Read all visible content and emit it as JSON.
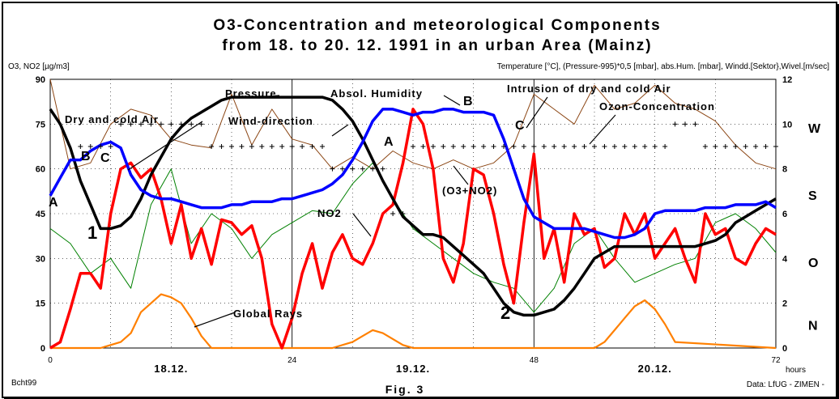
{
  "chart_data": {
    "type": "line",
    "title_line1": "O3-Concentration and meteorological Components",
    "title_line2": "from 18. to 20. 12. 1991 in an urban Area (Mainz)",
    "left_axis_label": "O3, NO2 [µg/m3]",
    "right_axis_label": "Temperature [°C], (Pressure-995)*0,5 [mbar], abs.Hum. [mbar], Windd.[Sektor},Wivel.[m/sec]",
    "x_unit": "hours",
    "xlim": [
      0,
      72
    ],
    "x_ticks": [
      "0",
      "24",
      "48",
      "72"
    ],
    "day_labels": [
      {
        "x": 12,
        "label": "18.12."
      },
      {
        "x": 36,
        "label": "19.12."
      },
      {
        "x": 60,
        "label": "20.12."
      }
    ],
    "ylim_left": [
      0,
      90
    ],
    "y_ticks_left": [
      "0",
      "15",
      "30",
      "45",
      "60",
      "75",
      "90"
    ],
    "ylim_right": [
      0,
      12
    ],
    "y_ticks_right": [
      "0",
      "2",
      "4",
      "6",
      "8",
      "10",
      "12"
    ],
    "wind_sector_labels": [
      "N",
      "O",
      "S",
      "W"
    ],
    "series": [
      {
        "key": "ozone",
        "color": "#ff0000",
        "x": [
          0,
          1,
          2,
          3,
          4,
          5,
          6,
          7,
          8,
          9,
          10,
          11,
          12,
          13,
          14,
          15,
          16,
          17,
          18,
          19,
          20,
          21,
          22,
          23,
          24,
          25,
          26,
          27,
          28,
          29,
          30,
          31,
          32,
          33,
          34,
          35,
          36,
          37,
          38,
          39,
          40,
          41,
          42,
          43,
          44,
          45,
          46,
          47,
          48,
          49,
          50,
          51,
          52,
          53,
          54,
          55,
          56,
          57,
          58,
          59,
          60,
          61,
          62,
          63,
          64,
          65,
          66,
          67,
          68,
          69,
          70,
          71,
          72
        ],
        "y": [
          0,
          2,
          13,
          25,
          25,
          20,
          45,
          60,
          62,
          57,
          60,
          50,
          35,
          48,
          30,
          40,
          28,
          43,
          42,
          38,
          41,
          30,
          8,
          0,
          10,
          25,
          35,
          20,
          32,
          38,
          30,
          28,
          35,
          45,
          48,
          62,
          80,
          75,
          60,
          30,
          22,
          35,
          60,
          58,
          45,
          28,
          15,
          42,
          65,
          30,
          40,
          22,
          45,
          38,
          40,
          27,
          30,
          45,
          38,
          45,
          30,
          35,
          40,
          30,
          22,
          45,
          38,
          40,
          30,
          28,
          35,
          40,
          38
        ]
      },
      {
        "key": "humidity",
        "color": "#0000ff",
        "x": [
          0,
          1,
          2,
          3,
          4,
          5,
          6,
          7,
          8,
          9,
          10,
          11,
          12,
          13,
          14,
          15,
          16,
          17,
          18,
          19,
          20,
          21,
          22,
          23,
          24,
          25,
          26,
          27,
          28,
          29,
          30,
          31,
          32,
          33,
          34,
          35,
          36,
          37,
          38,
          39,
          40,
          41,
          42,
          43,
          44,
          45,
          46,
          47,
          48,
          49,
          50,
          51,
          52,
          53,
          54,
          55,
          56,
          57,
          58,
          59,
          60,
          61,
          62,
          63,
          64,
          65,
          66,
          67,
          68,
          69,
          70,
          71,
          72
        ],
        "y": [
          51,
          57,
          63,
          63,
          66,
          68,
          69,
          67,
          58,
          53,
          51,
          50,
          50,
          49,
          48,
          47,
          47,
          47,
          48,
          48,
          49,
          49,
          49,
          50,
          50,
          51,
          52,
          53,
          55,
          58,
          63,
          69,
          76,
          80,
          80,
          79,
          78,
          79,
          79,
          80,
          80,
          79,
          79,
          79,
          78,
          70,
          60,
          50,
          44,
          42,
          40,
          40,
          40,
          40,
          39,
          38,
          37,
          37,
          38,
          40,
          45,
          46,
          46,
          46,
          46,
          47,
          47,
          47,
          48,
          48,
          48,
          49,
          47
        ]
      },
      {
        "key": "pressure",
        "color": "#000000",
        "x": [
          0,
          1,
          2,
          3,
          4,
          5,
          6,
          7,
          8,
          9,
          10,
          11,
          12,
          13,
          14,
          15,
          16,
          17,
          18,
          19,
          20,
          21,
          22,
          23,
          24,
          25,
          26,
          27,
          28,
          29,
          30,
          31,
          32,
          33,
          34,
          35,
          36,
          37,
          38,
          39,
          40,
          41,
          42,
          43,
          44,
          45,
          46,
          47,
          48,
          49,
          50,
          51,
          52,
          53,
          54,
          55,
          56,
          57,
          58,
          59,
          60,
          61,
          62,
          63,
          64,
          65,
          66,
          67,
          68,
          69,
          70,
          71,
          72
        ],
        "y": [
          80,
          75,
          67,
          56,
          48,
          40,
          40,
          41,
          44,
          50,
          58,
          64,
          70,
          74,
          77,
          79,
          81,
          83,
          84,
          84,
          84,
          84,
          84,
          84,
          84,
          84,
          84,
          84,
          83,
          80,
          76,
          70,
          63,
          56,
          50,
          44,
          41,
          38,
          38,
          37,
          34,
          31,
          28,
          25,
          20,
          15,
          12,
          11,
          11,
          12,
          13,
          16,
          20,
          25,
          30,
          32,
          34,
          34,
          34,
          34,
          34,
          34,
          34,
          34,
          34,
          35,
          36,
          38,
          42,
          44,
          46,
          48,
          50
        ]
      },
      {
        "key": "o3_no2",
        "color": "#8b4513",
        "x": [
          0,
          2,
          4,
          6,
          8,
          10,
          12,
          14,
          16,
          18,
          20,
          22,
          24,
          26,
          28,
          30,
          32,
          34,
          36,
          38,
          40,
          42,
          44,
          46,
          48,
          50,
          52,
          54,
          56,
          58,
          60,
          62,
          64,
          66,
          68,
          70,
          72
        ],
        "y": [
          90,
          60,
          62,
          75,
          80,
          78,
          70,
          68,
          67,
          85,
          68,
          80,
          70,
          68,
          60,
          64,
          60,
          66,
          62,
          60,
          63,
          60,
          62,
          68,
          85,
          80,
          75,
          88,
          80,
          82,
          88,
          82,
          80,
          76,
          68,
          62,
          60
        ]
      },
      {
        "key": "temperature",
        "color": "#008000",
        "x": [
          0,
          2,
          4,
          6,
          8,
          10,
          12,
          14,
          16,
          18,
          20,
          22,
          24,
          26,
          28,
          30,
          32,
          34,
          36,
          38,
          40,
          42,
          44,
          46,
          48,
          50,
          52,
          54,
          56,
          58,
          60,
          62,
          64,
          66,
          68,
          70,
          72
        ],
        "y": [
          40,
          35,
          25,
          30,
          20,
          48,
          60,
          35,
          45,
          40,
          30,
          38,
          42,
          46,
          45,
          55,
          62,
          50,
          40,
          35,
          30,
          25,
          22,
          20,
          12,
          20,
          35,
          40,
          30,
          22,
          25,
          28,
          30,
          42,
          45,
          40,
          32
        ]
      },
      {
        "key": "global_rays",
        "color": "#ff8000",
        "x": [
          0,
          5,
          7,
          8,
          9,
          10,
          11,
          12,
          13,
          14,
          15,
          16,
          17,
          18,
          19,
          28,
          30,
          31,
          32,
          33,
          34,
          35,
          36,
          52,
          54,
          55,
          56,
          57,
          58,
          59,
          60,
          61,
          62,
          72
        ],
        "y": [
          0,
          0,
          2,
          5,
          12,
          15,
          18,
          17,
          15,
          10,
          4,
          0,
          0,
          0,
          0,
          0,
          2,
          4,
          6,
          5,
          3,
          1,
          0,
          0,
          0,
          2,
          6,
          10,
          14,
          16,
          13,
          8,
          2,
          0
        ]
      },
      {
        "key": "wind_direction",
        "color": "#000000",
        "marker": "+",
        "x": [
          3,
          4,
          5,
          6,
          7,
          8,
          9,
          10,
          11,
          12,
          13,
          14,
          15,
          16,
          17,
          18,
          19,
          20,
          21,
          22,
          23,
          24,
          25,
          26,
          27,
          28,
          29,
          30,
          31,
          32,
          33,
          34,
          35,
          36,
          37,
          38,
          39,
          40,
          41,
          42,
          43,
          44,
          45,
          46,
          47,
          48,
          49,
          50,
          51,
          52,
          53,
          54,
          55,
          56,
          57,
          58,
          59,
          60,
          61,
          62,
          63,
          64,
          65,
          66,
          67,
          68,
          69,
          70,
          71,
          72
        ],
        "y": [
          9,
          9,
          9,
          9,
          10,
          10,
          10,
          10,
          10,
          10,
          10,
          10,
          10,
          9,
          9,
          9,
          9,
          9,
          9,
          9,
          9,
          9,
          9,
          9,
          9,
          8,
          8,
          8,
          8,
          8,
          8,
          6,
          6,
          9,
          9,
          9,
          9,
          9,
          9,
          9,
          9,
          9,
          9,
          9,
          9,
          9,
          9,
          9,
          9,
          9,
          9,
          9,
          9,
          9,
          9,
          9,
          9,
          9,
          9,
          10,
          10,
          10,
          9,
          9,
          9,
          9,
          9,
          9,
          9,
          9
        ]
      }
    ],
    "annotations": {
      "pressure": "Pressure",
      "dry_cold": "Dry and cold Air",
      "wind_direction": "Wind-direction",
      "absol_humidity": "Absol. Humidity",
      "intrusion": "Intrusion of dry and cold Air",
      "ozone": "Ozon-Concentration",
      "o3no2": "(O3+NO2)",
      "no2": "NO2",
      "global_rays": "Global Rays",
      "a1": "A",
      "b1": "B",
      "c1": "C",
      "a2": "A",
      "b2": "B",
      "c2": "C",
      "one": "1",
      "two": "2"
    }
  },
  "footer": {
    "left": "Bcht99",
    "center": "Fig. 3",
    "right": "Data: LfUG - ZIMEN -"
  }
}
